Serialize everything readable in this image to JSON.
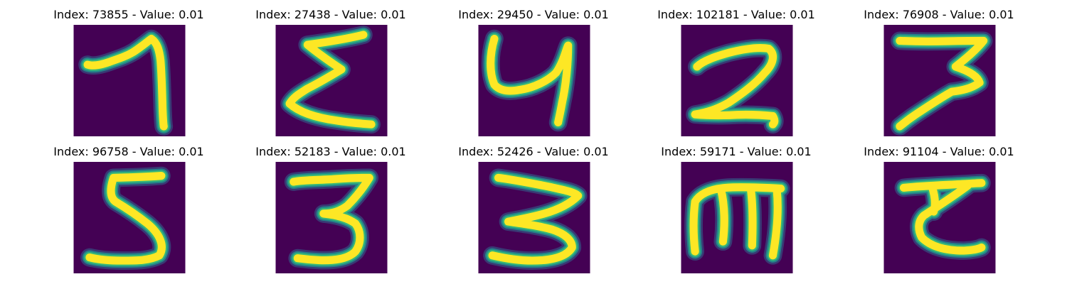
{
  "colors": {
    "background": "#440154",
    "stroke_core": "#fde725",
    "stroke_mid": "#35b779",
    "stroke_edge": "#21908d",
    "stroke_glow": "#31688e"
  },
  "panels": [
    {
      "title": "Index: 73855 - Value: 0.01",
      "glyph": "seven"
    },
    {
      "title": "Index: 27438 - Value: 0.01",
      "glyph": "sigma"
    },
    {
      "title": "Index: 29450 - Value: 0.01",
      "glyph": "four-open"
    },
    {
      "title": "Index: 102181 - Value: 0.01",
      "glyph": "two"
    },
    {
      "title": "Index: 76908 - Value: 0.01",
      "glyph": "seven-bar"
    },
    {
      "title": "Index: 96758 - Value: 0.01",
      "glyph": "five"
    },
    {
      "title": "Index: 52183 - Value: 0.01",
      "glyph": "three"
    },
    {
      "title": "Index: 52426 - Value: 0.01",
      "glyph": "three-wide"
    },
    {
      "title": "Index: 59171 - Value: 0.01",
      "glyph": "m"
    },
    {
      "title": "Index: 91104 - Value: 0.01",
      "glyph": "c-bar"
    }
  ]
}
